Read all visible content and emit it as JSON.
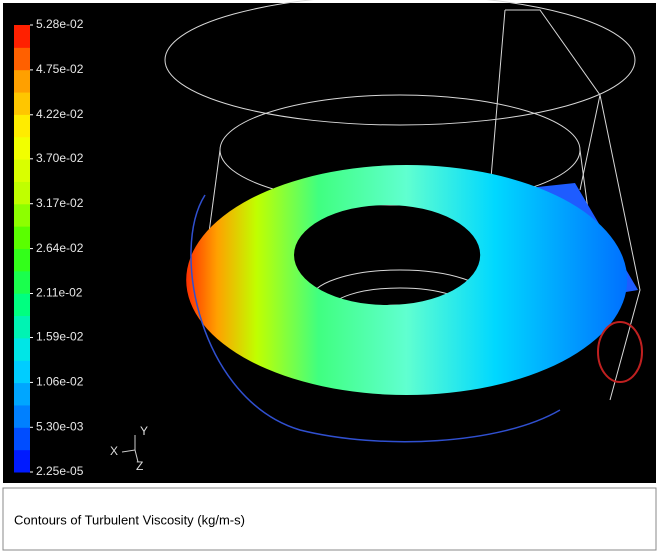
{
  "chart_data": {
    "type": "contour",
    "title": "Contours of Turbulent Viscosity (kg/m-s)",
    "clim": [
      2.25e-05,
      0.0528
    ],
    "cticks": [
      {
        "value": 2.25e-05,
        "label": "2.25e-05"
      },
      {
        "value": 0.0053,
        "label": "5.30e-03"
      },
      {
        "value": 0.0106,
        "label": "1.06e-02"
      },
      {
        "value": 0.0159,
        "label": "1.59e-02"
      },
      {
        "value": 0.0211,
        "label": "2.11e-02"
      },
      {
        "value": 0.0264,
        "label": "2.64e-02"
      },
      {
        "value": 0.0317,
        "label": "3.17e-02"
      },
      {
        "value": 0.037,
        "label": "3.70e-02"
      },
      {
        "value": 0.0422,
        "label": "4.22e-02"
      },
      {
        "value": 0.0475,
        "label": "4.75e-02"
      },
      {
        "value": 0.0528,
        "label": "5.28e-02"
      }
    ],
    "colormap": [
      "#0000ff",
      "#0080ff",
      "#00e0ff",
      "#00ff80",
      "#40ff00",
      "#c0ff00",
      "#ffff00",
      "#ffa000",
      "#ff0000"
    ],
    "triad": {
      "x": "X",
      "y": "Y",
      "z": "Z"
    }
  }
}
